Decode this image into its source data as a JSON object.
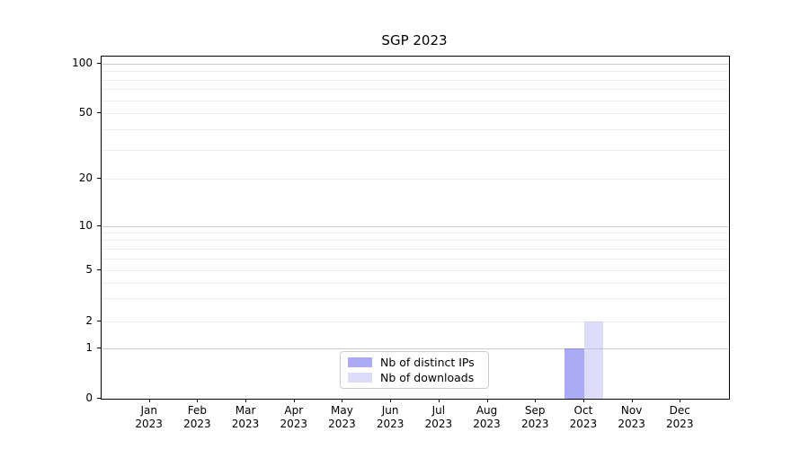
{
  "title": "SGP 2023",
  "chart_data": {
    "type": "bar",
    "title": "SGP 2023",
    "xlabel": "",
    "ylabel": "",
    "y_scale": "symlog",
    "ylim": [
      0,
      100
    ],
    "y_ticks": [
      0,
      1,
      2,
      5,
      10,
      20,
      50,
      100
    ],
    "y_minor_grid_values": [
      2,
      3,
      4,
      5,
      6,
      7,
      8,
      9,
      20,
      30,
      40,
      50,
      60,
      70,
      80,
      90
    ],
    "y_major_grid_values": [
      1,
      10,
      100
    ],
    "grid": "horizontal",
    "legend_position": "lower-center-inside",
    "categories": [
      {
        "month": "Jan",
        "year": "2023"
      },
      {
        "month": "Feb",
        "year": "2023"
      },
      {
        "month": "Mar",
        "year": "2023"
      },
      {
        "month": "Apr",
        "year": "2023"
      },
      {
        "month": "May",
        "year": "2023"
      },
      {
        "month": "Jun",
        "year": "2023"
      },
      {
        "month": "Jul",
        "year": "2023"
      },
      {
        "month": "Aug",
        "year": "2023"
      },
      {
        "month": "Sep",
        "year": "2023"
      },
      {
        "month": "Oct",
        "year": "2023"
      },
      {
        "month": "Nov",
        "year": "2023"
      },
      {
        "month": "Dec",
        "year": "2023"
      }
    ],
    "series": [
      {
        "name": "Nb of distinct IPs",
        "color": "#5555EE80",
        "values": [
          0,
          0,
          0,
          0,
          0,
          0,
          0,
          0,
          0,
          1,
          0,
          0
        ]
      },
      {
        "name": "Nb of downloads",
        "color": "#BBBBF380",
        "values": [
          0,
          0,
          0,
          0,
          0,
          0,
          0,
          0,
          0,
          2,
          0,
          0
        ]
      }
    ],
    "colors": {
      "major_grid": "#c9c9c9",
      "minor_grid": "#ededed",
      "spine": "#000000",
      "legend_border": "#cccccc"
    }
  }
}
